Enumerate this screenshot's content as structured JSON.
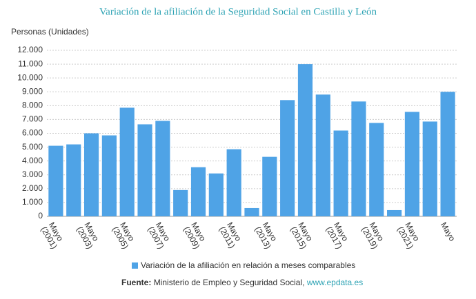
{
  "chart_data": {
    "type": "bar",
    "title": "Variación de la afiliación de la Seguridad Social en Castilla y León",
    "y_label": "Personas (Unidades)",
    "categories": [
      [
        "Mayo",
        "(2001)"
      ],
      null,
      [
        "Mayo",
        "(2003)"
      ],
      null,
      [
        "Mayo",
        "(2005)"
      ],
      null,
      [
        "Mayo",
        "(2007)"
      ],
      null,
      [
        "Mayo",
        "(2009)"
      ],
      null,
      [
        "Mayo",
        "(2011)"
      ],
      null,
      [
        "Mayo",
        "(2013)"
      ],
      null,
      [
        "Mayo",
        "(2015)"
      ],
      null,
      [
        "Mayo",
        "(2017)"
      ],
      null,
      [
        "Mayo",
        "(2019)"
      ],
      null,
      [
        "Mayo",
        "(2021)"
      ],
      null,
      [
        "Mayo"
      ]
    ],
    "series": [
      {
        "name": "Variación de la afiliación en relación a meses comparables",
        "color": "#4fa3e6",
        "values": [
          5100,
          5200,
          6000,
          5850,
          7850,
          6650,
          6900,
          1900,
          3550,
          3100,
          4850,
          600,
          4300,
          8400,
          11000,
          8800,
          6200,
          8300,
          6750,
          450,
          7550,
          6850,
          9000
        ]
      }
    ],
    "ylim": [
      0,
      12000
    ],
    "yticks": [
      0,
      {
        "value": 1000,
        "label": "1.000"
      },
      {
        "value": 2000,
        "label": "2.000"
      },
      {
        "value": 3000,
        "label": "3.000"
      },
      {
        "value": 4000,
        "label": "4.000"
      },
      {
        "value": 5000,
        "label": "5.000"
      },
      {
        "value": 6000,
        "label": "6.000"
      },
      {
        "value": 7000,
        "label": "7.000"
      },
      {
        "value": 8000,
        "label": "8.000"
      },
      {
        "value": 9000,
        "label": "9.000"
      },
      {
        "value": 10000,
        "label": "10.000"
      },
      {
        "value": 11000,
        "label": "11.000"
      },
      {
        "value": 12000,
        "label": "12.000"
      }
    ],
    "grid": true,
    "source": {
      "label": "Fuente:",
      "text": "Ministerio de Empleo y Seguridad Social,",
      "link": "www.epdata.es"
    }
  }
}
